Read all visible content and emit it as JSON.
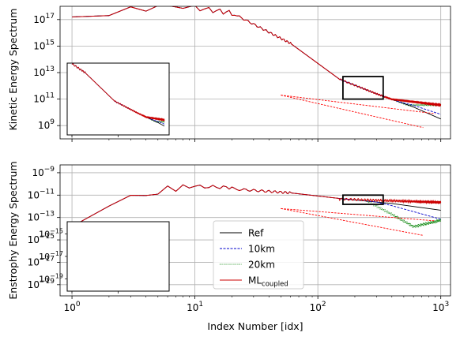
{
  "chart_data": [
    {
      "type": "line",
      "id": "kinetic",
      "xscale": "log",
      "yscale": "log",
      "xlim": [
        0.8,
        1200
      ],
      "ylim": [
        100000000.0,
        1e+18
      ],
      "ylabel": "Kinetic Energy Spectrum",
      "xlabel": "",
      "grid": true,
      "y_ticks": [
        {
          "value": 1e+17,
          "base": "10",
          "exp": "17"
        },
        {
          "value": 1000000000000000.0,
          "base": "10",
          "exp": "15"
        },
        {
          "value": 10000000000000.0,
          "base": "10",
          "exp": "13"
        },
        {
          "value": 100000000000.0,
          "base": "10",
          "exp": "11"
        },
        {
          "value": 1000000000.0,
          "base": "10",
          "exp": "9"
        }
      ],
      "inset": true,
      "zoom_box": {
        "x": [
          160,
          340
        ],
        "y": [
          100000000000.0,
          5000000000000.0
        ]
      }
    },
    {
      "type": "line",
      "id": "enstrophy",
      "xscale": "log",
      "yscale": "log",
      "xlim": [
        0.8,
        1200
      ],
      "ylim": [
        1e-20,
        5e-09
      ],
      "ylabel": "Enstrophy Energy Spectrum",
      "xlabel": "Index Number [idx]",
      "grid": true,
      "y_ticks": [
        {
          "value": 1e-09,
          "base": "10",
          "exp": "−9"
        },
        {
          "value": 1e-11,
          "base": "10",
          "exp": "−11"
        },
        {
          "value": 1e-13,
          "base": "10",
          "exp": "−13"
        },
        {
          "value": 1e-15,
          "base": "10",
          "exp": "−15"
        },
        {
          "value": 1e-17,
          "base": "10",
          "exp": "−17"
        },
        {
          "value": 1e-19,
          "base": "10",
          "exp": "−19"
        }
      ],
      "x_ticks": [
        {
          "value": 1,
          "base": "10",
          "exp": "0"
        },
        {
          "value": 10,
          "base": "10",
          "exp": "1"
        },
        {
          "value": 100,
          "base": "10",
          "exp": "2"
        },
        {
          "value": 1000,
          "base": "10",
          "exp": "3"
        }
      ],
      "inset": true,
      "zoom_box": {
        "x": [
          160,
          340
        ],
        "y": [
          1.5e-12,
          1e-11
        ]
      },
      "legend": {
        "placement": "lower-center",
        "entries": [
          {
            "name": "Ref",
            "sub": "",
            "color": "#000000",
            "dash": "none"
          },
          {
            "name": "10km",
            "sub": "",
            "color": "#0000cc",
            "dash": "dashed"
          },
          {
            "name": "20km",
            "sub": "",
            "color": "#008000",
            "dash": "dotted"
          },
          {
            "name": "ML",
            "sub": "coupled",
            "color": "#cc0000",
            "dash": "none"
          }
        ]
      }
    }
  ],
  "colors": {
    "ref": "#000000",
    "km10": "#0000cc",
    "km20": "#008000",
    "ml": "#cc0000",
    "guide": "#ff0000",
    "grid": "#b0b0b0"
  }
}
